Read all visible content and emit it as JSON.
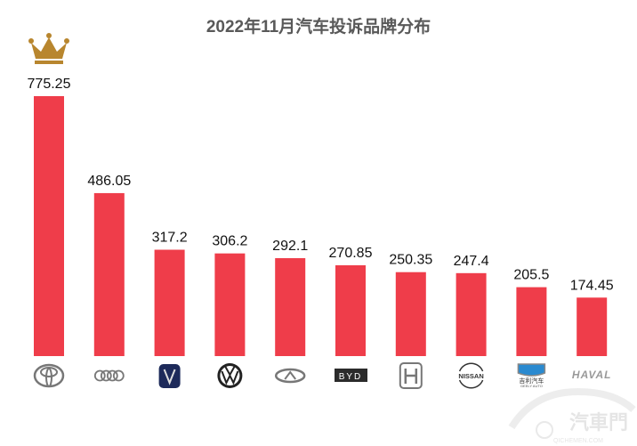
{
  "chart_data": {
    "type": "bar",
    "title": "2022年11月汽车投诉品牌分布",
    "categories": [
      "toyota-logo",
      "audi-logo",
      "changan-logo",
      "volkswagen-logo",
      "chery-logo",
      "byd-logo",
      "honda-logo",
      "nissan-logo",
      "geely-logo",
      "haval-logo"
    ],
    "values": [
      775.25,
      486.05,
      317.2,
      306.2,
      292.1,
      270.85,
      250.35,
      247.4,
      205.5,
      174.45
    ],
    "data_labels": [
      "775.25",
      "486.05",
      "317.2",
      "306.2",
      "292.1",
      "270.85",
      "250.35",
      "247.4",
      "205.5",
      "174.45"
    ],
    "ylim": [
      0,
      800
    ],
    "grid": false,
    "bar_color": "#EF3D4A",
    "top_marker": "crown-icon",
    "crown_color": "#B8862E"
  },
  "logo_text": {
    "byd": "BYD",
    "nissan": "NISSAN",
    "geely_cn": "吉利汽车",
    "geely_en": "GEELY AUTO",
    "haval": "HAVAL"
  },
  "watermark": {
    "cn": "汽車門",
    "en": "QICHEMEN.COM"
  }
}
